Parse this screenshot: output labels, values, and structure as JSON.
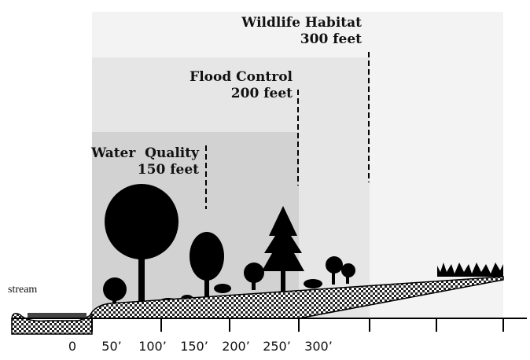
{
  "zones": [
    {
      "title": "Wildlife Habitat",
      "distance": "300 feet"
    },
    {
      "title": "Flood Control",
      "distance": "200 feet"
    },
    {
      "title": "Water  Quality",
      "distance": "150 feet"
    }
  ],
  "stream_label": "stream",
  "axis_labels": [
    "0",
    "50’",
    "100’",
    "150’",
    "200’",
    "250’",
    "300’"
  ]
}
